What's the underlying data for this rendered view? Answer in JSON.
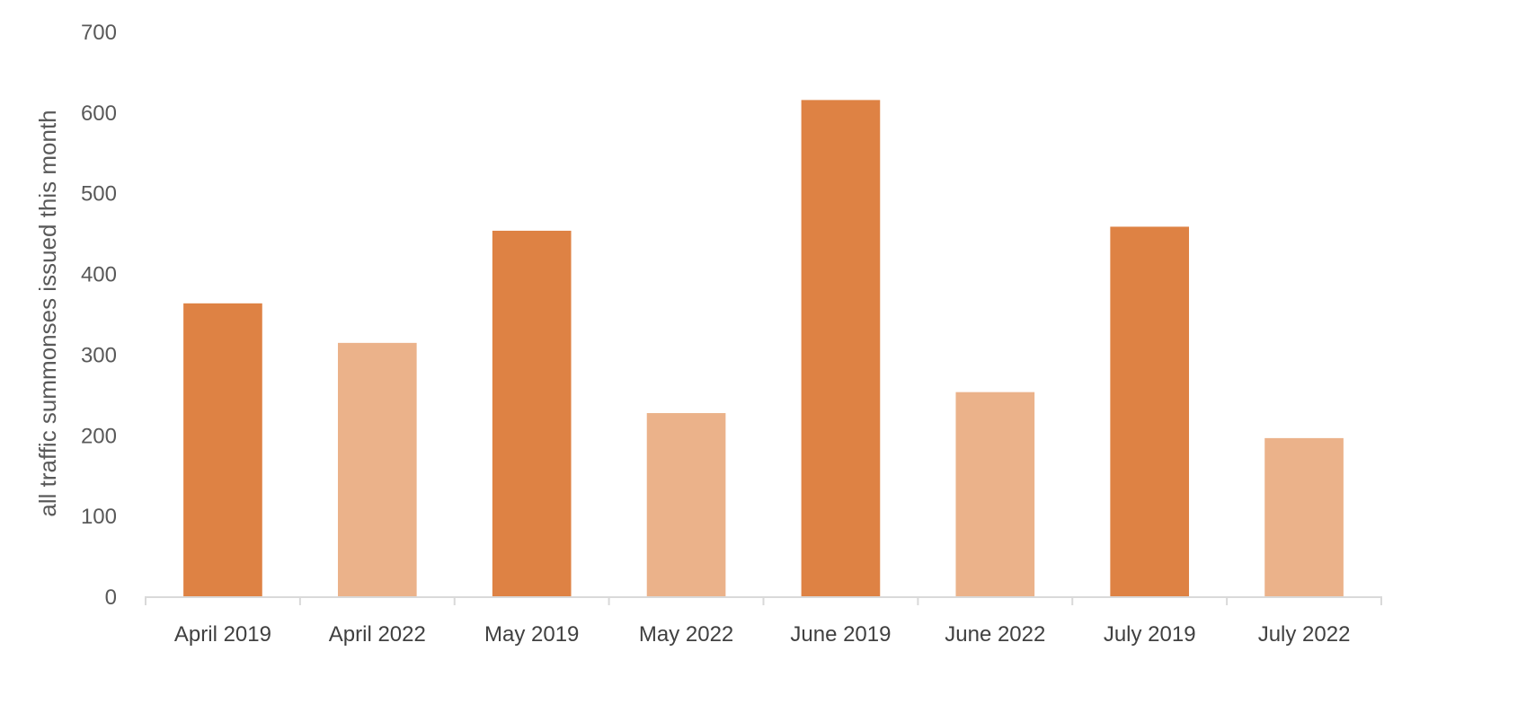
{
  "chart_data": {
    "type": "bar",
    "title": "",
    "xlabel": "",
    "ylabel": "all traffic summonses  issued this month",
    "ylim": [
      0,
      700
    ],
    "yticks": [
      0,
      100,
      200,
      300,
      400,
      500,
      600,
      700
    ],
    "grid": false,
    "categories": [
      "April 2019",
      "April 2022",
      "May 2019",
      "May 2022",
      "June 2019",
      "June 2022",
      "July 2019",
      "July 2022"
    ],
    "values": [
      363,
      314,
      453,
      227,
      615,
      253,
      458,
      196
    ],
    "colors": [
      "#DE8244",
      "#EBB28A",
      "#DE8244",
      "#EBB28A",
      "#DE8244",
      "#EBB28A",
      "#DE8244",
      "#EBB28A"
    ],
    "axis_color": "#D9D9D9"
  }
}
